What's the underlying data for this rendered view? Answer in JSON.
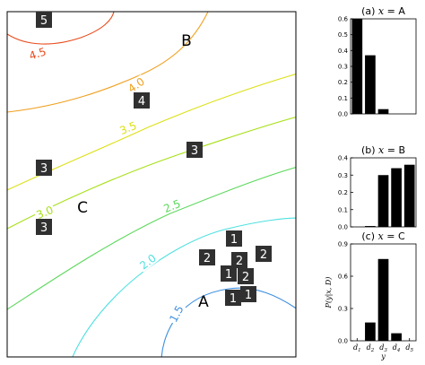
{
  "chart_data": [
    {
      "type": "contour",
      "xlabel": "",
      "ylabel": "",
      "grid": false,
      "contour_levels": [
        {
          "value": "1.5",
          "color": "#3d8fe0"
        },
        {
          "value": "2.0",
          "color": "#4fe0e0"
        },
        {
          "value": "2.5",
          "color": "#5cd85c"
        },
        {
          "value": "3.0",
          "color": "#a8e018"
        },
        {
          "value": "3.5",
          "color": "#dde018"
        },
        {
          "value": "4.0",
          "color": "#f0a020"
        },
        {
          "value": "4.5",
          "color": "#e84a1a"
        }
      ],
      "points": [
        {
          "label": "A"
        },
        {
          "label": "B"
        },
        {
          "label": "C"
        }
      ],
      "boxes": [
        "5",
        "4",
        "3",
        "3",
        "3",
        "1",
        "2",
        "2",
        "2",
        "1",
        "2",
        "1",
        "1"
      ]
    },
    {
      "type": "bar",
      "title": "(a) x = A",
      "categories": [
        "d1",
        "d2",
        "d3",
        "d4",
        "d5"
      ],
      "values": [
        0.6,
        0.37,
        0.03,
        0.0,
        0.0
      ],
      "ylim": [
        0,
        0.6
      ],
      "yticks": [
        "0.0",
        "0.1",
        "0.2",
        "0.3",
        "0.4",
        "0.5",
        "0.6"
      ],
      "show_xticks": false
    },
    {
      "type": "bar",
      "title": "(b) x = B",
      "categories": [
        "d1",
        "d2",
        "d3",
        "d4",
        "d5"
      ],
      "values": [
        0.0,
        0.005,
        0.3,
        0.34,
        0.36
      ],
      "ylim": [
        0,
        0.4
      ],
      "yticks": [
        "0.0",
        "0.1",
        "0.2",
        "0.3",
        "0.4"
      ],
      "show_xticks": false
    },
    {
      "type": "bar",
      "title": "(c) x = C",
      "categories": [
        "d1",
        "d2",
        "d3",
        "d4",
        "d5"
      ],
      "values": [
        0.0,
        0.17,
        0.76,
        0.07,
        0.0
      ],
      "ylim": [
        0,
        0.9
      ],
      "yticks": [
        "0.0",
        "0.3",
        "0.6",
        "0.9"
      ],
      "ylabel": "P(y|x, D)",
      "xlabel": "y",
      "show_xticks": true
    }
  ]
}
